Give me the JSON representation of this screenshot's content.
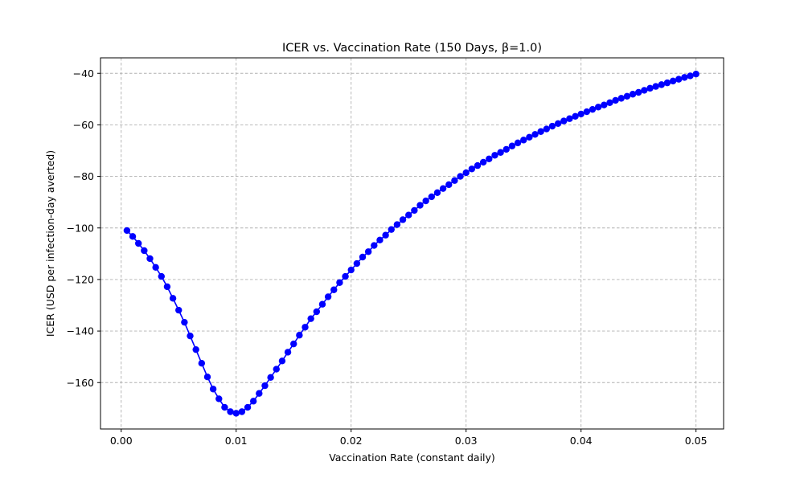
{
  "chart_data": {
    "type": "line",
    "title": "ICER vs. Vaccination Rate (150 Days, β=1.0)",
    "xlabel": "Vaccination Rate (constant daily)",
    "ylabel": "ICER (USD per infection-day averted)",
    "xlim": [
      -0.0018,
      0.0524
    ],
    "ylim": [
      -178,
      -34
    ],
    "x_ticks": [
      0.0,
      0.01,
      0.02,
      0.03,
      0.04,
      0.05
    ],
    "x_tick_labels": [
      "0.00",
      "0.01",
      "0.02",
      "0.03",
      "0.04",
      "0.05"
    ],
    "y_ticks": [
      -160,
      -140,
      -120,
      -100,
      -80,
      -60,
      -40
    ],
    "y_tick_labels": [
      "−160",
      "−140",
      "−120",
      "−100",
      "−80",
      "−60",
      "−40"
    ],
    "grid": true,
    "grid_style": "dashed",
    "color": "#0000ff",
    "marker": "circle",
    "series": [
      {
        "x": [
          0.0005,
          0.001,
          0.0015,
          0.002,
          0.0025,
          0.003,
          0.0035,
          0.004,
          0.0045,
          0.005,
          0.0055,
          0.006,
          0.0065,
          0.007,
          0.0075,
          0.008,
          0.0085,
          0.009,
          0.0095,
          0.01,
          0.0105,
          0.011,
          0.0115,
          0.012,
          0.0125,
          0.013,
          0.0135,
          0.014,
          0.0145,
          0.015,
          0.0155,
          0.016,
          0.0165,
          0.017,
          0.0175,
          0.018,
          0.0185,
          0.019,
          0.0195,
          0.02,
          0.0205,
          0.021,
          0.0215,
          0.022,
          0.0225,
          0.023,
          0.0235,
          0.024,
          0.0245,
          0.025,
          0.0255,
          0.026,
          0.0265,
          0.027,
          0.0275,
          0.028,
          0.0285,
          0.029,
          0.0295,
          0.03,
          0.0305,
          0.031,
          0.0315,
          0.032,
          0.0325,
          0.033,
          0.0335,
          0.034,
          0.0345,
          0.035,
          0.0355,
          0.036,
          0.0365,
          0.037,
          0.0375,
          0.038,
          0.0385,
          0.039,
          0.0395,
          0.04,
          0.0405,
          0.041,
          0.0415,
          0.042,
          0.0425,
          0.043,
          0.0435,
          0.044,
          0.0445,
          0.045,
          0.0455,
          0.046,
          0.0465,
          0.047,
          0.0475,
          0.048,
          0.0485,
          0.049,
          0.0495,
          0.05
        ],
        "y": [
          -101,
          -103.3,
          -106,
          -108.8,
          -111.9,
          -115.3,
          -118.8,
          -122.8,
          -127.3,
          -131.9,
          -136.6,
          -141.9,
          -147.2,
          -152.5,
          -157.8,
          -162.5,
          -166.3,
          -169.6,
          -171.3,
          -171.9,
          -171.3,
          -169.6,
          -167.2,
          -164.2,
          -161.2,
          -158,
          -154.8,
          -151.6,
          -148.2,
          -145,
          -141.6,
          -138.5,
          -135.2,
          -132.5,
          -129.6,
          -126.7,
          -124,
          -121.2,
          -118.8,
          -116.3,
          -113.8,
          -111.3,
          -109.2,
          -106.8,
          -104.7,
          -102.8,
          -100.6,
          -98.7,
          -96.8,
          -95,
          -93.2,
          -91.2,
          -89.5,
          -87.9,
          -86.3,
          -84.7,
          -83.2,
          -81.6,
          -80,
          -78.6,
          -77.1,
          -75.8,
          -74.5,
          -73.2,
          -71.8,
          -70.7,
          -69.5,
          -68.2,
          -67,
          -65.9,
          -64.8,
          -63.7,
          -62.6,
          -61.6,
          -60.5,
          -59.5,
          -58.5,
          -57.6,
          -56.7,
          -55.8,
          -54.9,
          -54,
          -53.1,
          -52.3,
          -51.4,
          -50.5,
          -49.7,
          -48.9,
          -48.1,
          -47.4,
          -46.6,
          -45.8,
          -45.1,
          -44.4,
          -43.7,
          -43,
          -42.3,
          -41.6,
          -41,
          -40.3
        ]
      }
    ]
  }
}
